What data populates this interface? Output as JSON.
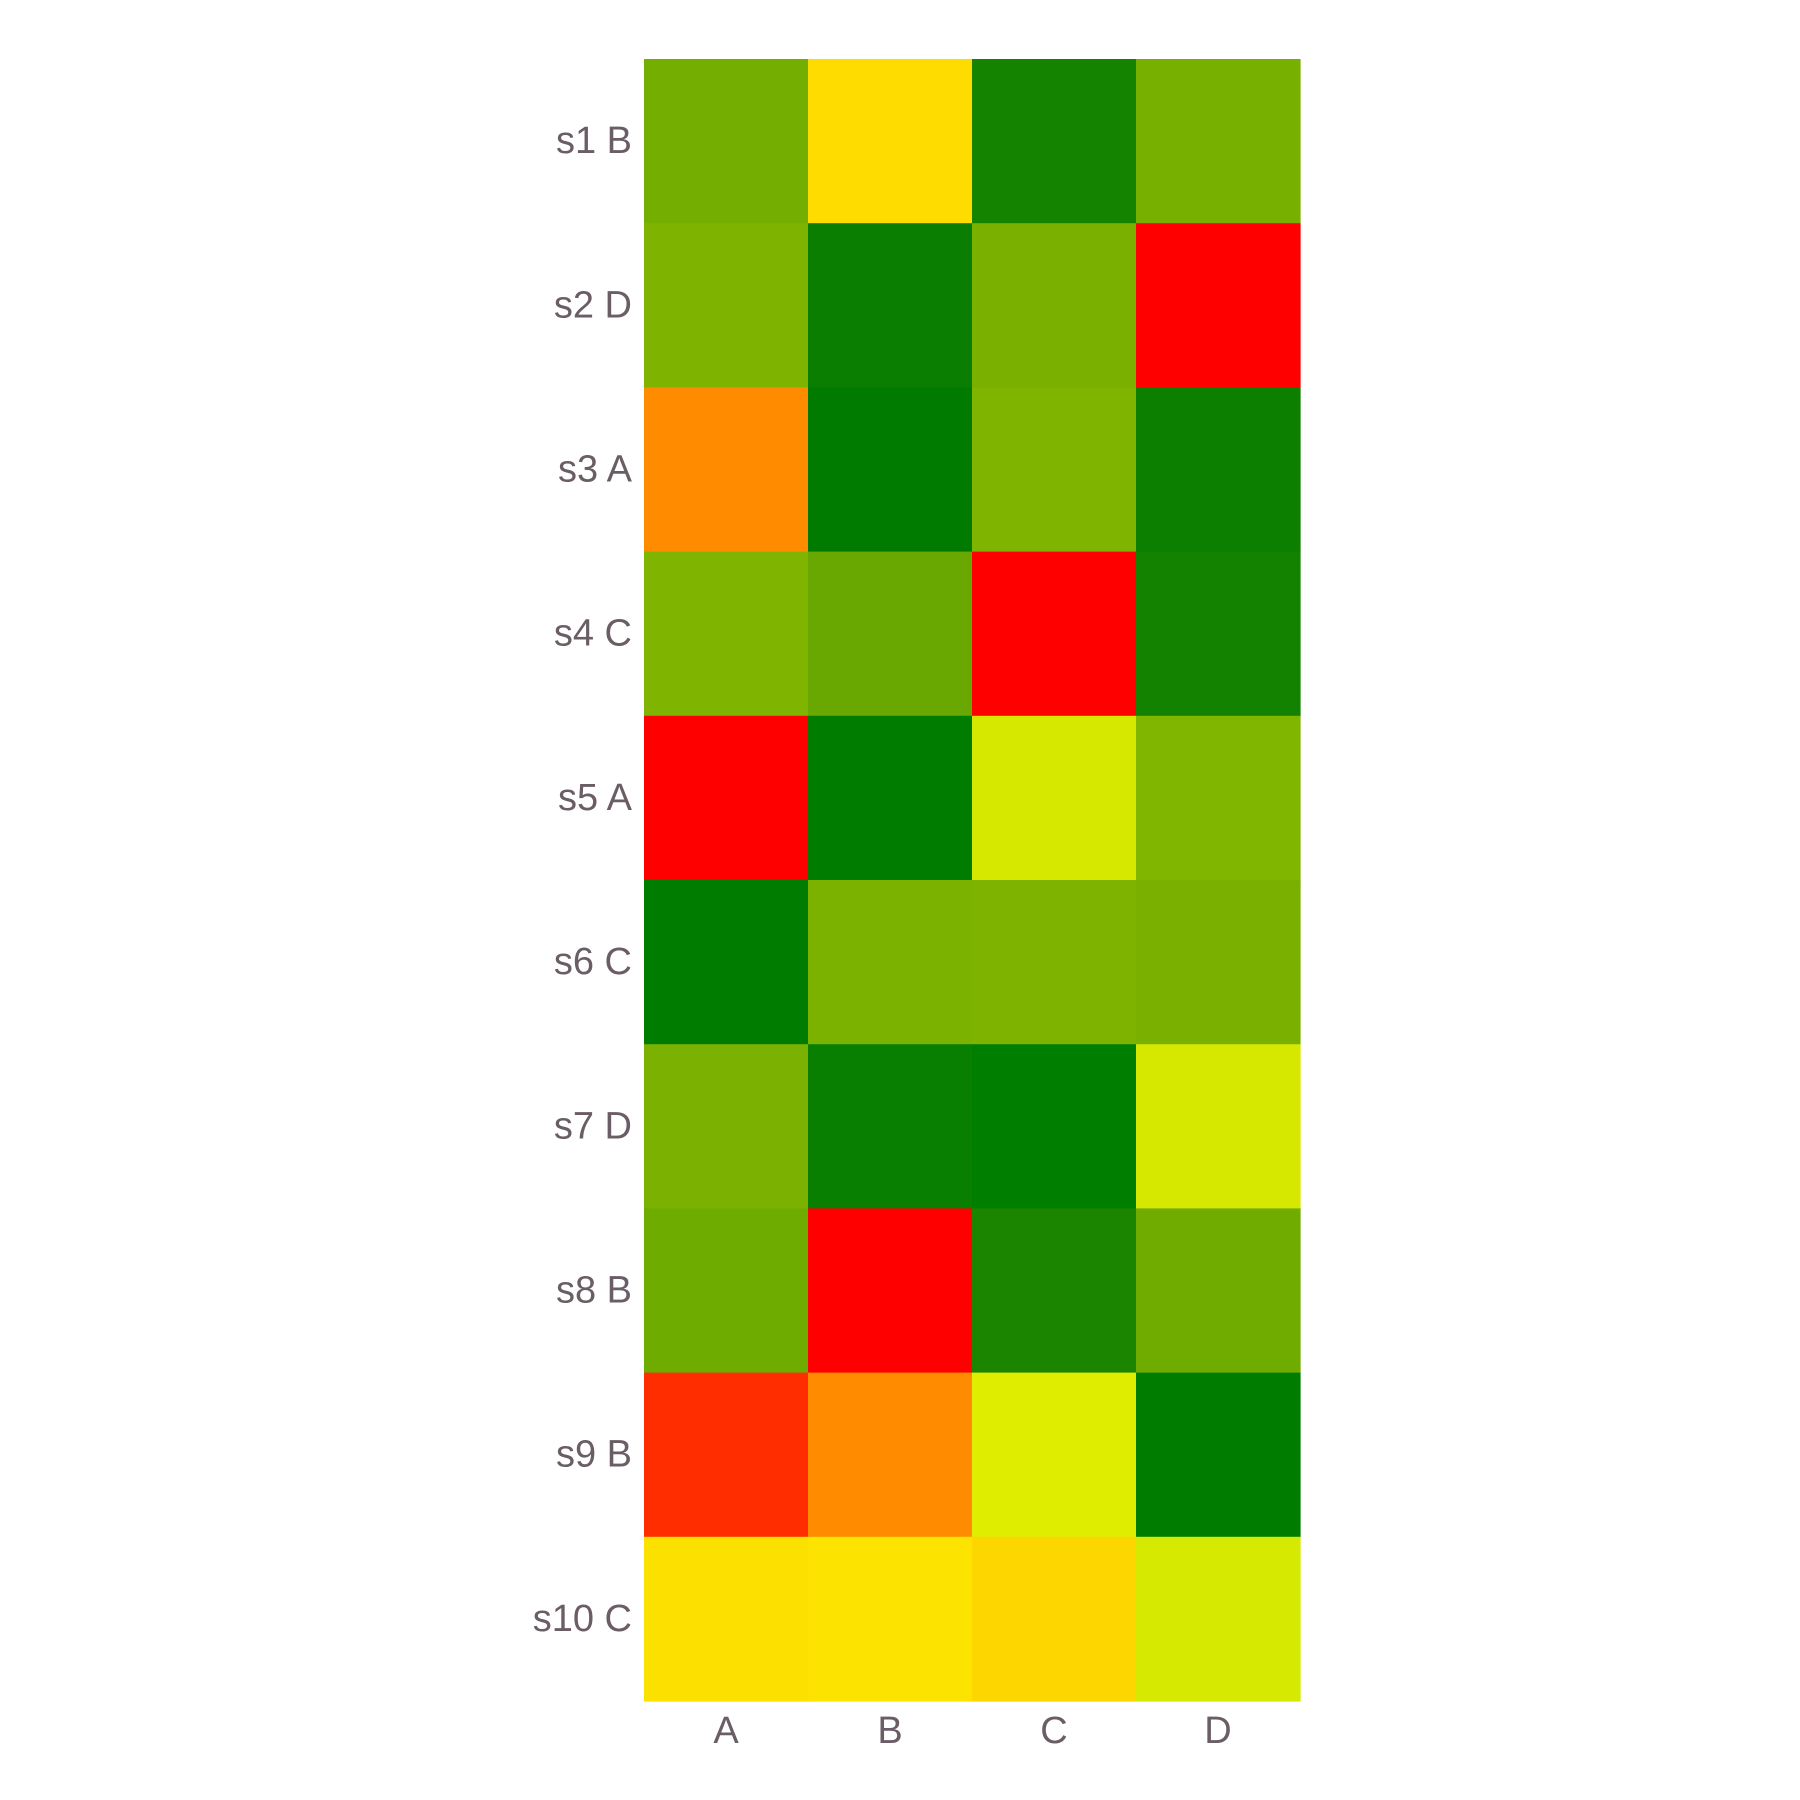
{
  "chart_data": {
    "type": "heatmap",
    "title": "",
    "xlabel": "",
    "ylabel": "",
    "x": [
      "A",
      "B",
      "C",
      "D"
    ],
    "y": [
      "s1 B",
      "s2 D",
      "s3 A",
      "s4 C",
      "s5 A",
      "s6 C",
      "s7 D",
      "s8 B",
      "s9 B",
      "s10 C"
    ],
    "colors": [
      [
        "#74ae00",
        "#ffdc00",
        "#148400",
        "#78b000"
      ],
      [
        "#7eb400",
        "#0a7e00",
        "#7ab100",
        "#ff0000"
      ],
      [
        "#ff8c00",
        "#007b00",
        "#7fb500",
        "#0c7f00"
      ],
      [
        "#7fb400",
        "#68a800",
        "#ff0000",
        "#128200"
      ],
      [
        "#ff0000",
        "#007c00",
        "#d6e700",
        "#80b600"
      ],
      [
        "#007d00",
        "#7bb200",
        "#7eb300",
        "#7ab100"
      ],
      [
        "#7bb100",
        "#087f00",
        "#007e00",
        "#d6e800"
      ],
      [
        "#6fac00",
        "#ff0000",
        "#1c8500",
        "#70ac00"
      ],
      [
        "#ff2d00",
        "#ff8c00",
        "#dfed00",
        "#007d00"
      ],
      [
        "#fce000",
        "#fde400",
        "#fdd600",
        "#d6e900"
      ]
    ],
    "colorscale": [
      "#ff0000",
      "#ff8c00",
      "#ffdc00",
      "#dfed00",
      "#80b600",
      "#007d00"
    ]
  }
}
